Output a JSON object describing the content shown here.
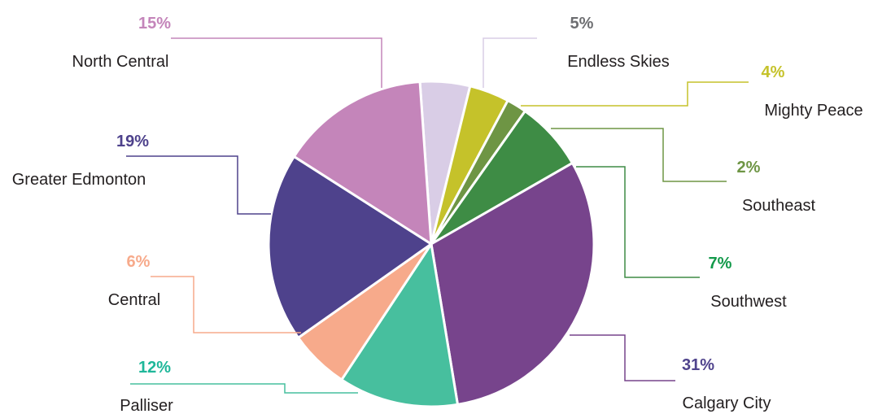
{
  "chart_data": {
    "type": "pie",
    "title": "",
    "slices": [
      {
        "label": "Endless Skies",
        "value": 5,
        "value_label": "5%",
        "color": "#d9cde6",
        "text_color": "#6d6e71"
      },
      {
        "label": "Mighty Peace",
        "value": 4,
        "value_label": "4%",
        "color": "#c5c22a",
        "text_color": "#c5c22a"
      },
      {
        "label": "Southeast",
        "value": 2,
        "value_label": "2%",
        "color": "#6e9544",
        "text_color": "#6e9544"
      },
      {
        "label": "Southwest",
        "value": 7,
        "value_label": "7%",
        "color": "#3e8c45",
        "text_color": "#12994a"
      },
      {
        "label": "Calgary City",
        "value": 31,
        "value_label": "31%",
        "color": "#77448c",
        "text_color": "#4f438c"
      },
      {
        "label": "Palliser",
        "value": 12,
        "value_label": "12%",
        "color": "#47bf9e",
        "text_color": "#1fb79a"
      },
      {
        "label": "Central",
        "value": 6,
        "value_label": "6%",
        "color": "#f7aa8b",
        "text_color": "#f7aa8b"
      },
      {
        "label": "Greater Edmonton",
        "value": 19,
        "value_label": "19%",
        "color": "#4e428c",
        "text_color": "#4e428c"
      },
      {
        "label": "North Central",
        "value": 15,
        "value_label": "15%",
        "color": "#c485ba",
        "text_color": "#c485ba"
      }
    ]
  }
}
